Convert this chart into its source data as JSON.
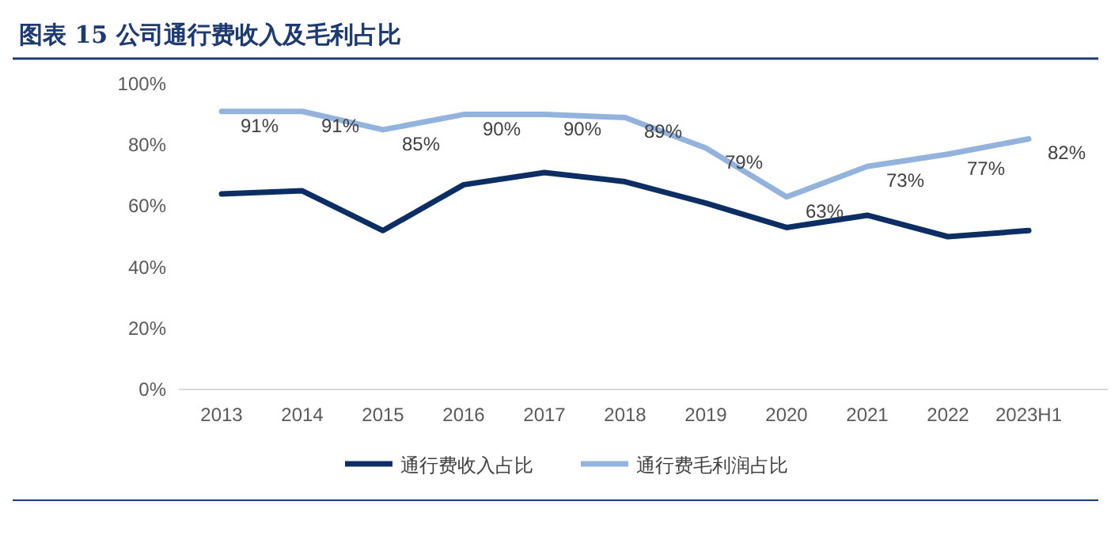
{
  "chart_data": {
    "type": "line",
    "title": "图表 15 公司通行费收入及毛利占比",
    "categories": [
      "2013",
      "2014",
      "2015",
      "2016",
      "2017",
      "2018",
      "2019",
      "2020",
      "2021",
      "2022",
      "2023H1"
    ],
    "series": [
      {
        "name": "通行费收入占比",
        "color": "#0c2e63",
        "values": [
          64,
          65,
          52,
          67,
          71,
          68,
          61,
          53,
          57,
          50,
          52
        ]
      },
      {
        "name": "通行费毛利润占比",
        "color": "#94b3dc",
        "values": [
          91,
          91,
          85,
          90,
          90,
          89,
          79,
          63,
          73,
          77,
          82
        ],
        "value_labels": [
          "91%",
          "91%",
          "85%",
          "90%",
          "90%",
          "89%",
          "79%",
          "63%",
          "73%",
          "77%",
          "82%"
        ]
      }
    ],
    "ylim": [
      0,
      100
    ],
    "yticks": [
      {
        "value": 0,
        "label": "0%"
      },
      {
        "value": 20,
        "label": "20%"
      },
      {
        "value": 40,
        "label": "40%"
      },
      {
        "value": 60,
        "label": "60%"
      },
      {
        "value": 80,
        "label": "80%"
      },
      {
        "value": 100,
        "label": "100%"
      }
    ],
    "grid": false,
    "legend": "bottom",
    "marker": "none",
    "line_style": "solid"
  }
}
